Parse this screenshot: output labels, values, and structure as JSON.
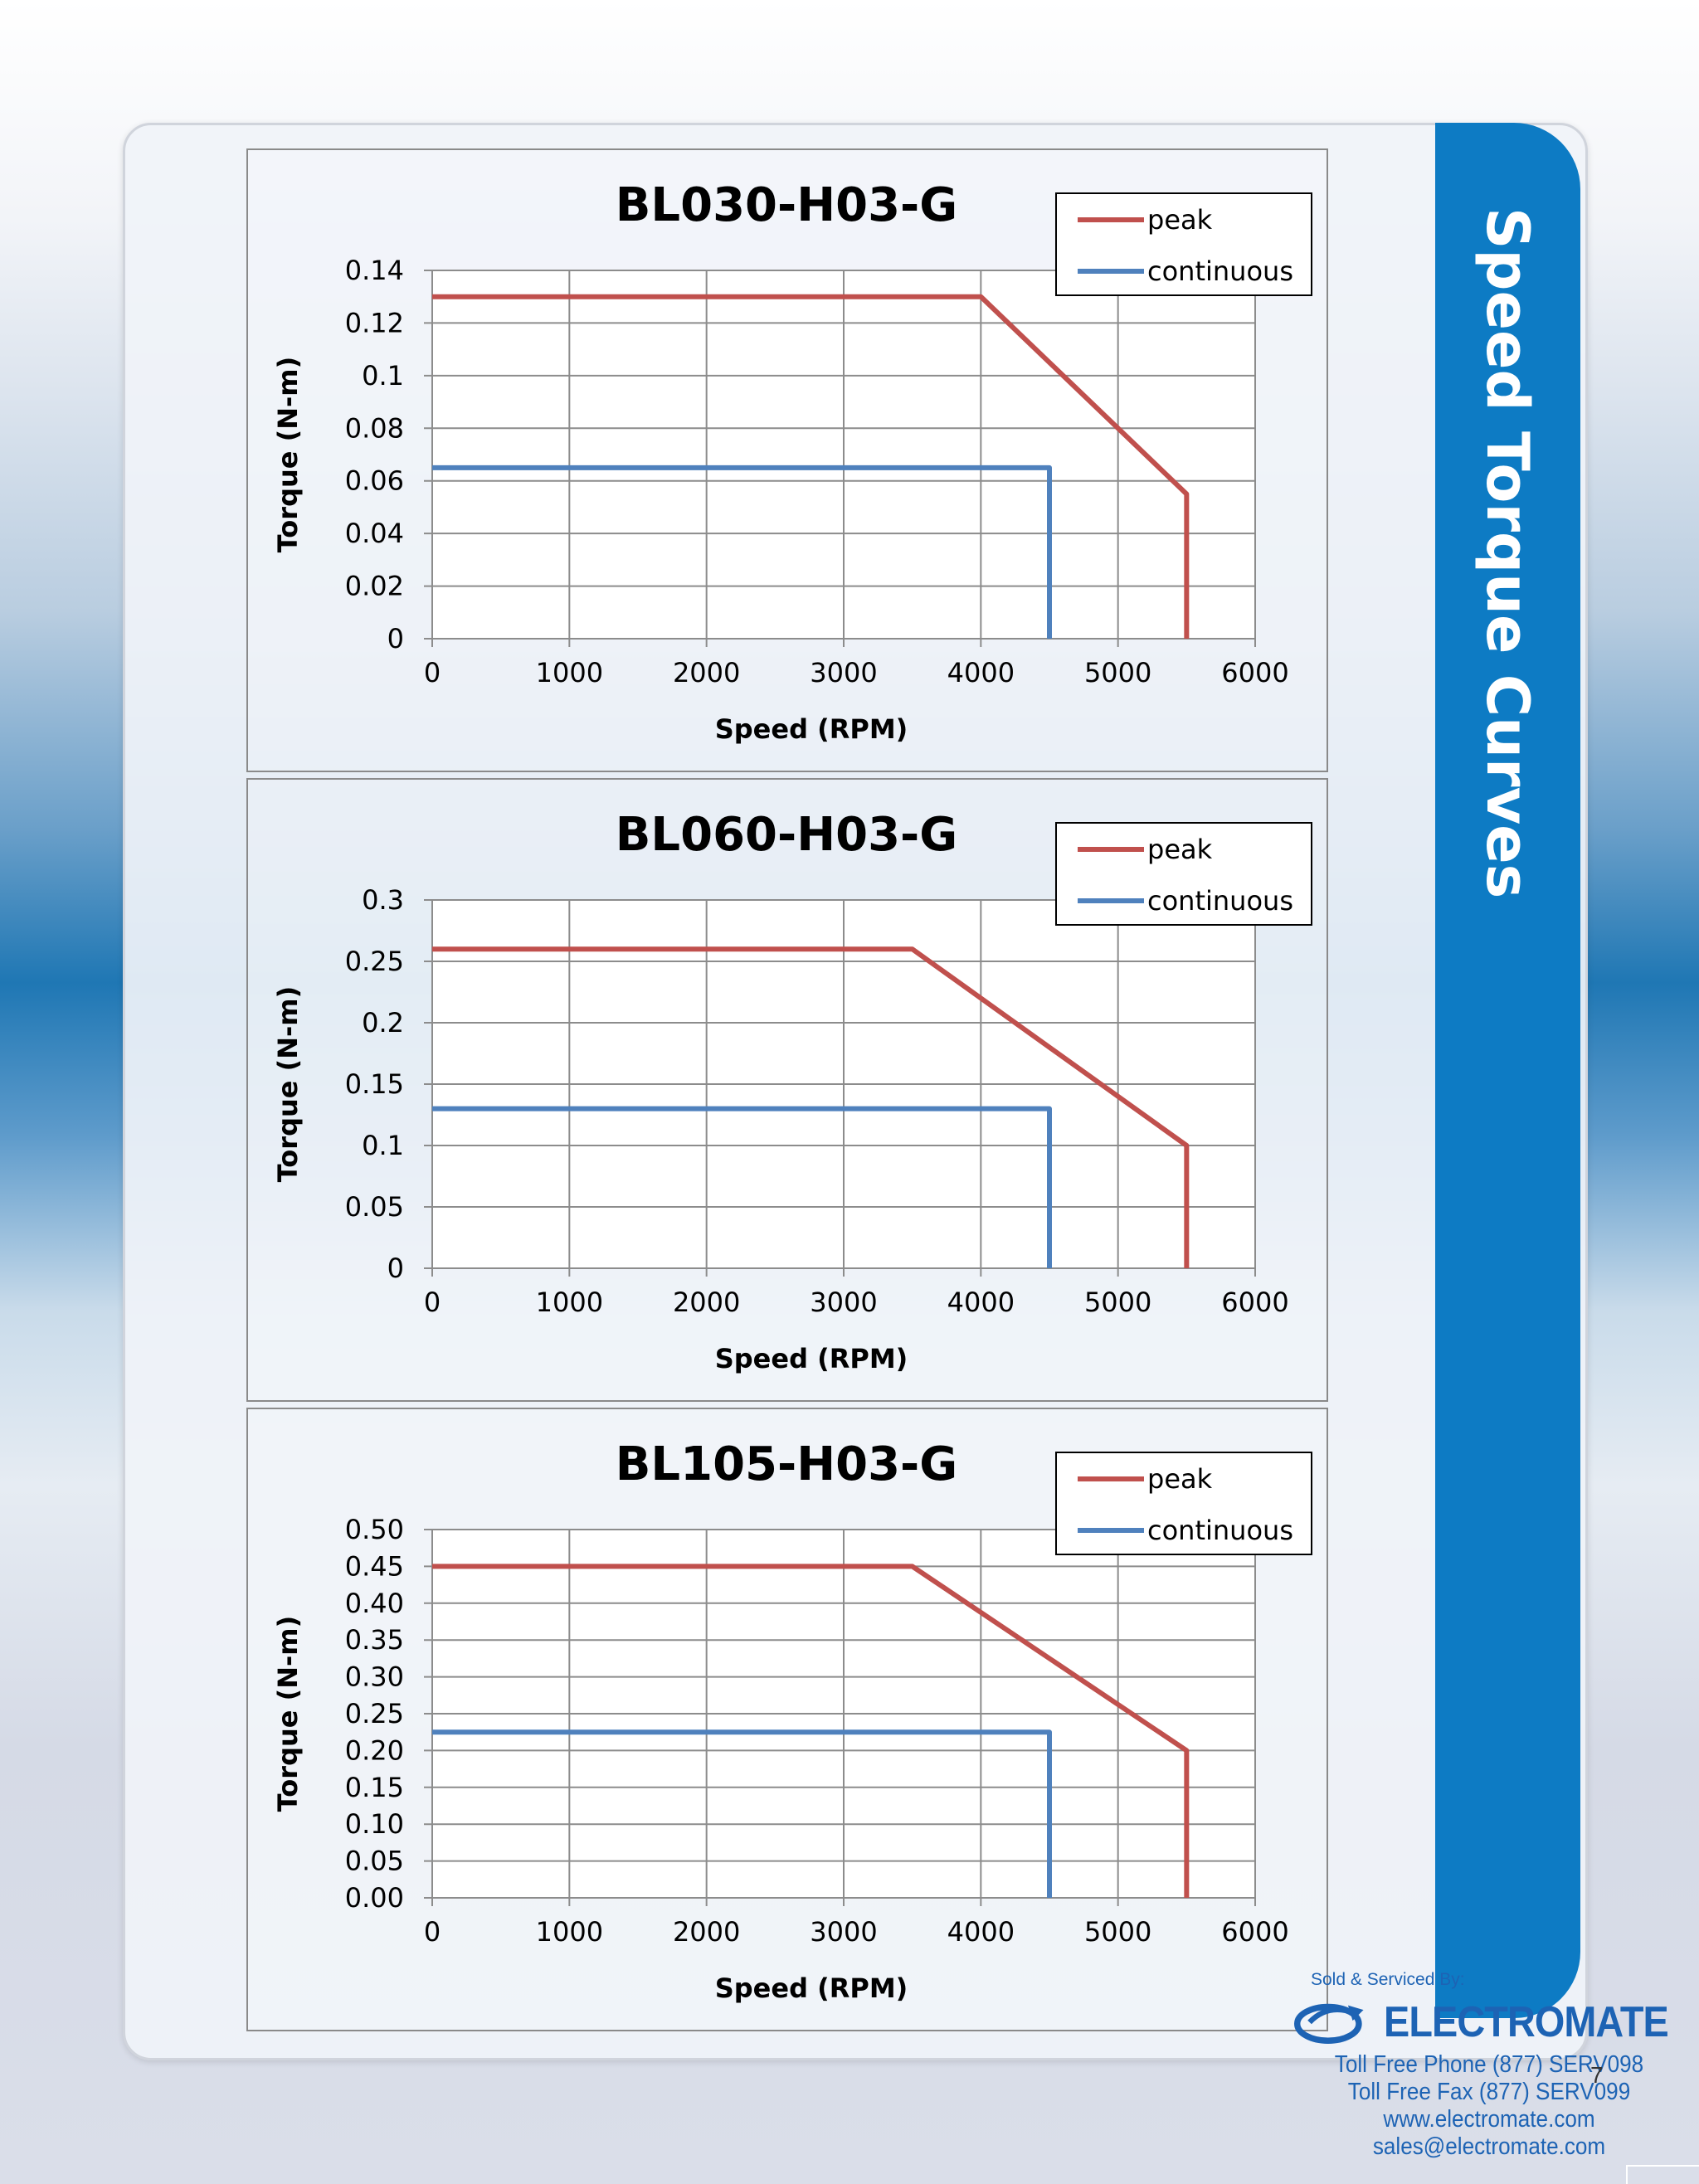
{
  "page": {
    "side_title": "Speed Torque Curves",
    "page_number": "7"
  },
  "footer": {
    "sold_by": "Sold & Serviced By:",
    "brand": "ELECTROMATE",
    "phone": "Toll Free Phone  (877) SERV098",
    "fax": "Toll Free Fax  (877) SERV099",
    "web": "www.electromate.com",
    "email": "sales@electromate.com"
  },
  "colors": {
    "peak": "#c0504d",
    "continuous": "#4f81bd",
    "accent": "#0d7bc4"
  },
  "chart_data": [
    {
      "type": "line",
      "title": "BL030-H03-G",
      "xlabel": "Speed (RPM)",
      "ylabel": "Torque (N-m)",
      "xlim": [
        0,
        6000
      ],
      "ylim": [
        0,
        0.14
      ],
      "xticks": [
        "0",
        "1000",
        "2000",
        "3000",
        "4000",
        "5000",
        "6000"
      ],
      "yticks": [
        "0",
        "0.02",
        "0.04",
        "0.06",
        "0.08",
        "0.1",
        "0.12",
        "0.14"
      ],
      "grid": true,
      "legend": "top-right",
      "series": [
        {
          "name": "peak",
          "x": [
            0,
            4000,
            5500,
            5500
          ],
          "y": [
            0.13,
            0.13,
            0.055,
            0
          ]
        },
        {
          "name": "continuous",
          "x": [
            0,
            4500,
            4500
          ],
          "y": [
            0.065,
            0.065,
            0
          ]
        }
      ]
    },
    {
      "type": "line",
      "title": "BL060-H03-G",
      "xlabel": "Speed (RPM)",
      "ylabel": "Torque (N-m)",
      "xlim": [
        0,
        6000
      ],
      "ylim": [
        0,
        0.3
      ],
      "xticks": [
        "0",
        "1000",
        "2000",
        "3000",
        "4000",
        "5000",
        "6000"
      ],
      "yticks": [
        "0",
        "0.05",
        "0.1",
        "0.15",
        "0.2",
        "0.25",
        "0.3"
      ],
      "grid": true,
      "legend": "top-right",
      "series": [
        {
          "name": "peak",
          "x": [
            0,
            3500,
            5500,
            5500
          ],
          "y": [
            0.26,
            0.26,
            0.1,
            0
          ]
        },
        {
          "name": "continuous",
          "x": [
            0,
            4500,
            4500
          ],
          "y": [
            0.13,
            0.13,
            0
          ]
        }
      ]
    },
    {
      "type": "line",
      "title": "BL105-H03-G",
      "xlabel": "Speed (RPM)",
      "ylabel": "Torque (N-m)",
      "xlim": [
        0,
        6000
      ],
      "ylim": [
        0,
        0.5
      ],
      "xticks": [
        "0",
        "1000",
        "2000",
        "3000",
        "4000",
        "5000",
        "6000"
      ],
      "yticks": [
        "0.00",
        "0.05",
        "0.10",
        "0.15",
        "0.20",
        "0.25",
        "0.30",
        "0.35",
        "0.40",
        "0.45",
        "0.50"
      ],
      "grid": true,
      "legend": "top-right",
      "series": [
        {
          "name": "peak",
          "x": [
            0,
            3500,
            5500,
            5500
          ],
          "y": [
            0.45,
            0.45,
            0.2,
            0
          ]
        },
        {
          "name": "continuous",
          "x": [
            0,
            4500,
            4500
          ],
          "y": [
            0.225,
            0.225,
            0
          ]
        }
      ]
    }
  ]
}
